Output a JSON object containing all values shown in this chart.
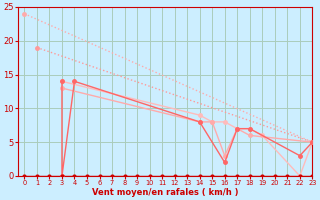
{
  "bg_color": "#cceeff",
  "grid_color": "#aaccbb",
  "xlabel": "Vent moyen/en rafales ( km/h )",
  "xlabel_color": "#cc0000",
  "tick_color": "#cc0000",
  "spine_color": "#cc0000",
  "xlim": [
    -0.5,
    23
  ],
  "ylim": [
    0,
    25
  ],
  "yticks": [
    0,
    5,
    10,
    15,
    20,
    25
  ],
  "xticks": [
    0,
    1,
    2,
    3,
    4,
    5,
    6,
    7,
    8,
    9,
    10,
    11,
    12,
    13,
    14,
    15,
    16,
    17,
    18,
    19,
    20,
    21,
    22,
    23
  ],
  "series": [
    {
      "x": [
        0,
        1,
        2,
        3,
        4,
        5,
        6,
        7,
        8,
        9,
        10,
        11,
        12,
        13,
        14,
        15,
        16,
        17,
        18,
        19,
        20,
        21,
        22,
        23
      ],
      "y": [
        0,
        0,
        0,
        0,
        0,
        0,
        0,
        0,
        0,
        0,
        0,
        0,
        0,
        0,
        0,
        0,
        0,
        0,
        0,
        0,
        0,
        0,
        0,
        0
      ],
      "color": "#cc0000",
      "lw": 1.0,
      "marker": "o",
      "ms": 2.0,
      "linestyle": "-",
      "zorder": 5
    },
    {
      "x": [
        0,
        23
      ],
      "y": [
        24,
        5
      ],
      "color": "#ffaaaa",
      "lw": 1.0,
      "marker": "o",
      "ms": 2.5,
      "linestyle": ":",
      "zorder": 2
    },
    {
      "x": [
        1,
        23
      ],
      "y": [
        19,
        5
      ],
      "color": "#ff9999",
      "lw": 1.0,
      "marker": "o",
      "ms": 2.5,
      "linestyle": ":",
      "zorder": 3
    },
    {
      "x": [
        3,
        3,
        4,
        14,
        16,
        17,
        18,
        22,
        23
      ],
      "y": [
        14,
        0,
        14,
        8,
        2,
        7,
        7,
        3,
        5
      ],
      "color": "#ff6666",
      "lw": 1.0,
      "marker": "o",
      "ms": 2.5,
      "linestyle": "-",
      "zorder": 4
    },
    {
      "x": [
        3,
        14,
        15,
        16,
        17,
        18,
        23
      ],
      "y": [
        13,
        8,
        8,
        3,
        7,
        6,
        5
      ],
      "color": "#ffaaaa",
      "lw": 1.0,
      "marker": "o",
      "ms": 2.5,
      "linestyle": "-",
      "zorder": 3
    },
    {
      "x": [
        3,
        14,
        15,
        16,
        17,
        18,
        19,
        22,
        23
      ],
      "y": [
        14,
        9,
        8,
        8,
        7,
        7,
        6,
        0,
        5
      ],
      "color": "#ffbbbb",
      "lw": 1.0,
      "marker": "o",
      "ms": 2.5,
      "linestyle": "-",
      "zorder": 2
    }
  ]
}
